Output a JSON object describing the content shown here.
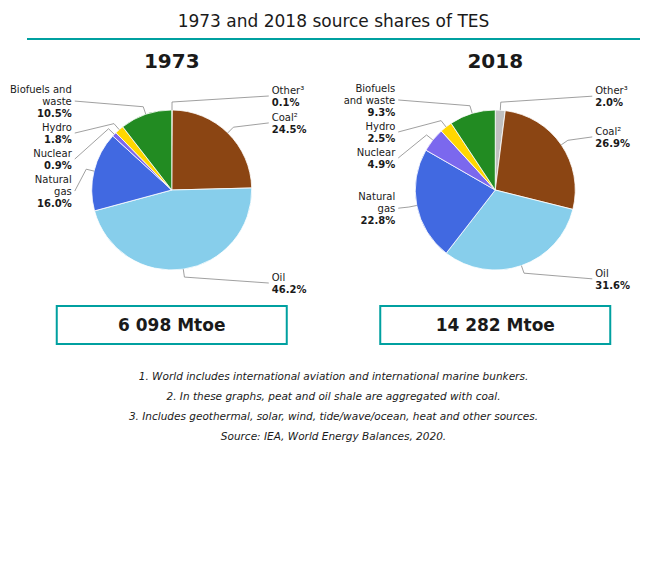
{
  "title": "1973 and 2018 source shares of TES",
  "annotations": [
    "1. World includes international aviation and international marine bunkers.",
    "2. In these graphs, peat and oil shale are aggregated with coal.",
    "3. Includes geothermal, solar, wind, tide/wave/ocean, heat and other sources.",
    "Source: IEA, World Energy Balances, 2020."
  ],
  "chart_data": [
    {
      "type": "pie",
      "title": "1973",
      "categories": [
        "Other³",
        "Coal²",
        "Oil",
        "Natural\ngas",
        "Nuclear",
        "Hydro",
        "Biofuels and\nwaste"
      ],
      "values": [
        0.1,
        24.5,
        46.2,
        16.0,
        0.9,
        1.8,
        10.5
      ],
      "value_labels": [
        "0.1%",
        "24.5%",
        "46.2%",
        "16.0%",
        "0.9%",
        "1.8%",
        "10.5%"
      ],
      "colors": [
        "#a0522d",
        "#8B4513",
        "#87CEEB",
        "#4169E1",
        "#7B68EE",
        "#FFD700",
        "#228B22"
      ],
      "data_labels": true,
      "annotations": [
        "6 098 Mtoe"
      ]
    },
    {
      "type": "pie",
      "title": "2018",
      "categories": [
        "Other³",
        "Coal²",
        "Oil",
        "Natural\ngas",
        "Nuclear",
        "Hydro",
        "Biofuels\nand waste"
      ],
      "values": [
        2.0,
        26.9,
        31.6,
        22.8,
        4.9,
        2.5,
        9.3
      ],
      "value_labels": [
        "2.0%",
        "26.9%",
        "31.6%",
        "22.8%",
        "4.9%",
        "2.5%",
        "9.3%"
      ],
      "colors": [
        "#c0c0c0",
        "#8B4513",
        "#87CEEB",
        "#4169E1",
        "#7B68EE",
        "#FFD700",
        "#228B22"
      ],
      "data_labels": true,
      "annotations": [
        "14 282 Mtoe"
      ]
    }
  ]
}
